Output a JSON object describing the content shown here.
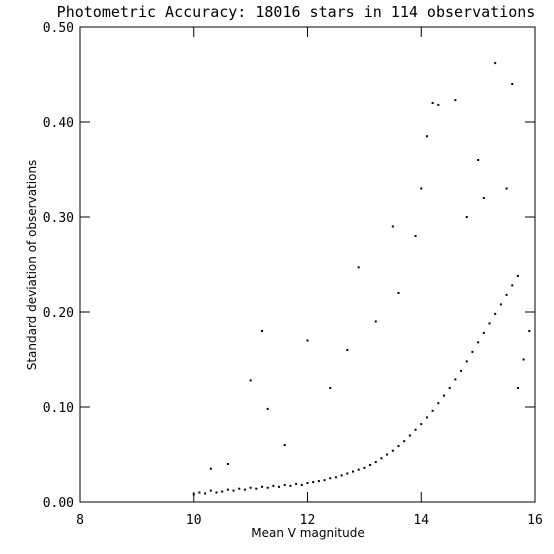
{
  "chart_data": {
    "type": "scatter",
    "title": "Photometric Accuracy: 18016 stars in 114 observations",
    "xlabel": "Mean V magnitude",
    "ylabel": "Standard deviation of observations",
    "xlim": [
      8,
      16
    ],
    "ylim": [
      0,
      0.5
    ],
    "x_ticks": [
      {
        "value": 8,
        "label": "8"
      },
      {
        "value": 10,
        "label": "10"
      },
      {
        "value": 12,
        "label": "12"
      },
      {
        "value": 14,
        "label": "14"
      },
      {
        "value": 16,
        "label": "16"
      }
    ],
    "y_ticks": [
      {
        "value": 0.0,
        "label": "0.00"
      },
      {
        "value": 0.1,
        "label": "0.10"
      },
      {
        "value": 0.2,
        "label": "0.20"
      },
      {
        "value": 0.3,
        "label": "0.30"
      },
      {
        "value": 0.4,
        "label": "0.40"
      },
      {
        "value": 0.5,
        "label": "0.50"
      }
    ],
    "grid": false,
    "marker_color": "#000000",
    "points": [
      [
        10.0,
        0.008
      ],
      [
        10.1,
        0.01
      ],
      [
        10.2,
        0.009
      ],
      [
        10.3,
        0.012
      ],
      [
        10.4,
        0.01
      ],
      [
        10.5,
        0.011
      ],
      [
        10.6,
        0.013
      ],
      [
        10.7,
        0.012
      ],
      [
        10.8,
        0.014
      ],
      [
        10.9,
        0.013
      ],
      [
        11.0,
        0.015
      ],
      [
        11.1,
        0.014
      ],
      [
        11.2,
        0.016
      ],
      [
        11.3,
        0.015
      ],
      [
        11.4,
        0.017
      ],
      [
        11.5,
        0.016
      ],
      [
        11.6,
        0.018
      ],
      [
        11.7,
        0.017
      ],
      [
        11.8,
        0.019
      ],
      [
        11.9,
        0.018
      ],
      [
        12.0,
        0.02
      ],
      [
        12.1,
        0.021
      ],
      [
        12.2,
        0.022
      ],
      [
        12.3,
        0.023
      ],
      [
        12.4,
        0.025
      ],
      [
        12.5,
        0.026
      ],
      [
        12.6,
        0.028
      ],
      [
        12.7,
        0.03
      ],
      [
        12.8,
        0.032
      ],
      [
        12.9,
        0.034
      ],
      [
        13.0,
        0.036
      ],
      [
        13.1,
        0.039
      ],
      [
        13.2,
        0.042
      ],
      [
        13.3,
        0.046
      ],
      [
        13.4,
        0.05
      ],
      [
        13.5,
        0.054
      ],
      [
        13.6,
        0.059
      ],
      [
        13.7,
        0.064
      ],
      [
        13.8,
        0.07
      ],
      [
        13.9,
        0.076
      ],
      [
        14.0,
        0.082
      ],
      [
        14.1,
        0.089
      ],
      [
        14.2,
        0.096
      ],
      [
        14.3,
        0.104
      ],
      [
        14.4,
        0.112
      ],
      [
        14.5,
        0.12
      ],
      [
        14.6,
        0.129
      ],
      [
        14.7,
        0.138
      ],
      [
        14.8,
        0.148
      ],
      [
        14.9,
        0.158
      ],
      [
        15.0,
        0.168
      ],
      [
        15.1,
        0.178
      ],
      [
        15.2,
        0.188
      ],
      [
        15.3,
        0.198
      ],
      [
        15.4,
        0.208
      ],
      [
        15.5,
        0.218
      ],
      [
        15.6,
        0.228
      ],
      [
        15.7,
        0.238
      ],
      [
        10.3,
        0.035
      ],
      [
        11.0,
        0.128
      ],
      [
        11.2,
        0.18
      ],
      [
        11.3,
        0.098
      ],
      [
        12.0,
        0.17
      ],
      [
        12.4,
        0.12
      ],
      [
        12.9,
        0.247
      ],
      [
        13.5,
        0.29
      ],
      [
        13.6,
        0.22
      ],
      [
        14.0,
        0.33
      ],
      [
        14.1,
        0.385
      ],
      [
        14.2,
        0.42
      ],
      [
        14.3,
        0.418
      ],
      [
        14.6,
        0.423
      ],
      [
        15.3,
        0.462
      ],
      [
        15.6,
        0.44
      ],
      [
        14.8,
        0.3
      ],
      [
        15.0,
        0.36
      ],
      [
        13.9,
        0.28
      ],
      [
        13.2,
        0.19
      ],
      [
        12.7,
        0.16
      ],
      [
        11.6,
        0.06
      ],
      [
        10.6,
        0.04
      ],
      [
        15.8,
        0.15
      ],
      [
        15.7,
        0.12
      ],
      [
        15.9,
        0.18
      ],
      [
        15.5,
        0.33
      ],
      [
        15.1,
        0.32
      ]
    ]
  }
}
